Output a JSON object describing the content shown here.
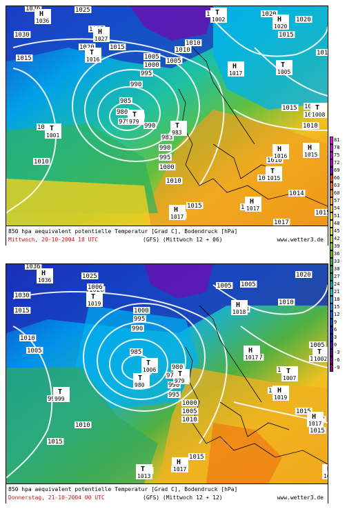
{
  "panels": [
    {
      "caption_line1": "850 hpa aequivalent potentielle Temperatur [Grad C], Bodendruck [hPa]",
      "caption_date": "Mittwoch, 20-10-2004   18 UTC",
      "caption_model": "(GFS)  (Mittwoch 12 + 06)",
      "caption_site": "www.wetter3.de",
      "pressure_labels": [
        "1036",
        "1025",
        "1027",
        "1002",
        "1020",
        "1015",
        "1030",
        "1020",
        "1015",
        "1010",
        "1015",
        "1005",
        "1000",
        "995",
        "990",
        "985",
        "980",
        "979",
        "990",
        "983",
        "1005",
        "1001",
        "1010",
        "990",
        "995",
        "1000",
        "1010",
        "1015",
        "1017",
        "1017",
        "1014",
        "1016",
        "1015",
        "1015",
        "1017",
        "1010",
        "1008",
        "1005",
        "1014",
        "1015",
        "1020",
        "1010"
      ],
      "centers": [
        {
          "kind": "H",
          "value": "1036"
        },
        {
          "kind": "H",
          "value": "1027"
        },
        {
          "kind": "T",
          "value": "1002"
        },
        {
          "kind": "H",
          "value": "1020"
        },
        {
          "kind": "T",
          "value": "1016"
        },
        {
          "kind": "H",
          "value": "1017"
        },
        {
          "kind": "T",
          "value": "1005"
        },
        {
          "kind": "T",
          "value": "979"
        },
        {
          "kind": "T",
          "value": "983"
        },
        {
          "kind": "T",
          "value": "1001"
        },
        {
          "kind": "H",
          "value": "1017"
        },
        {
          "kind": "H",
          "value": "1017"
        },
        {
          "kind": "T",
          "value": "1015"
        },
        {
          "kind": "H",
          "value": "1016"
        },
        {
          "kind": "T",
          "value": "1008"
        },
        {
          "kind": "H",
          "value": "1015"
        }
      ]
    },
    {
      "caption_line1": "850 hpa aequivalent potentielle Temperatur [Grad C], Bodendruck [hPa]",
      "caption_date": "Donnerstag, 21-10-2004   00 UTC",
      "caption_model": "(GFS)  (Mittwoch 12 + 12)",
      "caption_site": "www.wetter3.de",
      "pressure_labels": [
        "1036",
        "1025",
        "1020",
        "1030",
        "1015",
        "1010",
        "1005",
        "1000",
        "995",
        "990",
        "985",
        "980",
        "979",
        "990",
        "995",
        "1000",
        "1005",
        "1010",
        "1015",
        "1015",
        "1017",
        "1013",
        "1010",
        "1005",
        "1002",
        "1007",
        "1018",
        "1017",
        "1019",
        "1015",
        "1010",
        "1020",
        "999",
        "1006",
        "1005",
        "1017",
        "1015",
        "1005"
      ],
      "centers": [
        {
          "kind": "H",
          "value": "1036"
        },
        {
          "kind": "T",
          "value": "1019"
        },
        {
          "kind": "T",
          "value": "1006"
        },
        {
          "kind": "T",
          "value": "980"
        },
        {
          "kind": "T",
          "value": "979"
        },
        {
          "kind": "T",
          "value": "999"
        },
        {
          "kind": "H",
          "value": "1018"
        },
        {
          "kind": "H",
          "value": "1017"
        },
        {
          "kind": "T",
          "value": "1007"
        },
        {
          "kind": "T",
          "value": "1002"
        },
        {
          "kind": "H",
          "value": "1019"
        },
        {
          "kind": "H",
          "value": "1017"
        },
        {
          "kind": "T",
          "value": "1013"
        },
        {
          "kind": "H",
          "value": "1017"
        },
        {
          "kind": "H",
          "value": "1015"
        }
      ]
    }
  ],
  "scale": {
    "labels": [
      "81",
      "78",
      "75",
      "72",
      "69",
      "66",
      "63",
      "60",
      "57",
      "54",
      "51",
      "48",
      "45",
      "42",
      "39",
      "36",
      "33",
      "30",
      "27",
      "24",
      "21",
      "18",
      "15",
      "12",
      "9",
      "6",
      "3",
      "0",
      "-3",
      "-6",
      "-9"
    ],
    "colors": [
      "#ff00ff",
      "#e600e6",
      "#cc00dd",
      "#b000cc",
      "#9400c8",
      "#ff4000",
      "#ff6a00",
      "#ff9000",
      "#ffb000",
      "#ffc800",
      "#ffe000",
      "#ffff40",
      "#e0f000",
      "#b8e000",
      "#90d000",
      "#60c000",
      "#40b040",
      "#20a060",
      "#00a080",
      "#00b0b0",
      "#00c8e0",
      "#00b0f0",
      "#0090e8",
      "#0070e0",
      "#0050d0",
      "#0030c0",
      "#2020b0",
      "#4010a0",
      "#600090",
      "#800080",
      "#a00080"
    ]
  }
}
